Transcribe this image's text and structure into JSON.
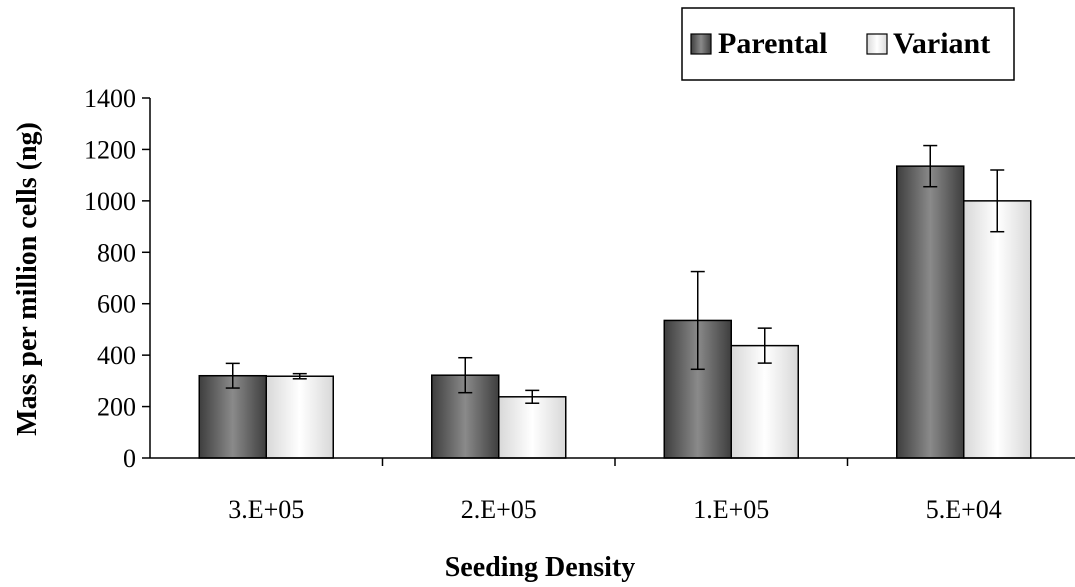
{
  "chart_data": {
    "type": "bar",
    "xlabel": "Seeding Density",
    "ylabel": "Mass per million cells (ng)",
    "categories": [
      "3.E+05",
      "2.E+05",
      "1.E+05",
      "5.E+04"
    ],
    "ylim": [
      0,
      1400
    ],
    "yticks": [
      0,
      200,
      400,
      600,
      800,
      1000,
      1200,
      1400
    ],
    "grid": false,
    "legend_position": "top-right",
    "series": [
      {
        "name": "Parental",
        "color": "#5f5f5f",
        "values": [
          320,
          322,
          535,
          1135
        ],
        "errors": [
          48,
          68,
          190,
          80
        ]
      },
      {
        "name": "Variant",
        "color": "#f2f2f2",
        "values": [
          318,
          238,
          437,
          1000
        ],
        "errors": [
          10,
          25,
          68,
          120
        ]
      }
    ]
  }
}
